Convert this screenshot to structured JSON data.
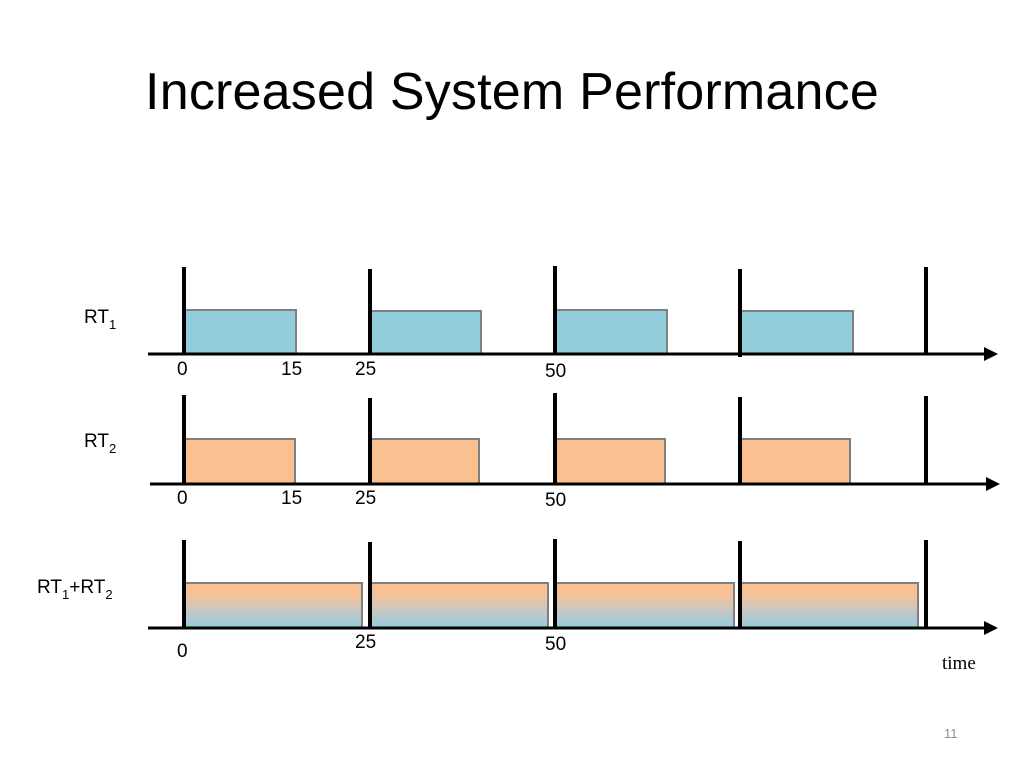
{
  "slide": {
    "title": "Increased System Performance",
    "page_number": "11"
  },
  "colors": {
    "rt1_fill": "#92cddc",
    "rt2_fill": "#fac090",
    "box_stroke": "#7f7f7f",
    "line": "#000000"
  },
  "rows": [
    {
      "id": "rt1",
      "label": {
        "main": "RT",
        "sub": "1"
      },
      "fill": "rt1",
      "period": 25,
      "busy": 15,
      "ticks": [
        "0",
        "15",
        "25",
        "50"
      ]
    },
    {
      "id": "rt2",
      "label": {
        "main": "RT",
        "sub": "2"
      },
      "fill": "rt2",
      "period": 25,
      "busy": 15,
      "ticks": [
        "0",
        "15",
        "25",
        "50"
      ]
    },
    {
      "id": "rt1rt2",
      "label": {
        "main": "RT",
        "sub": "1",
        "plus": "+RT",
        "sub2": "2"
      },
      "fill": "gradient",
      "period": 25,
      "busy": 25,
      "ticks": [
        "0",
        "25",
        "50"
      ]
    }
  ],
  "time_axis_label": "time"
}
